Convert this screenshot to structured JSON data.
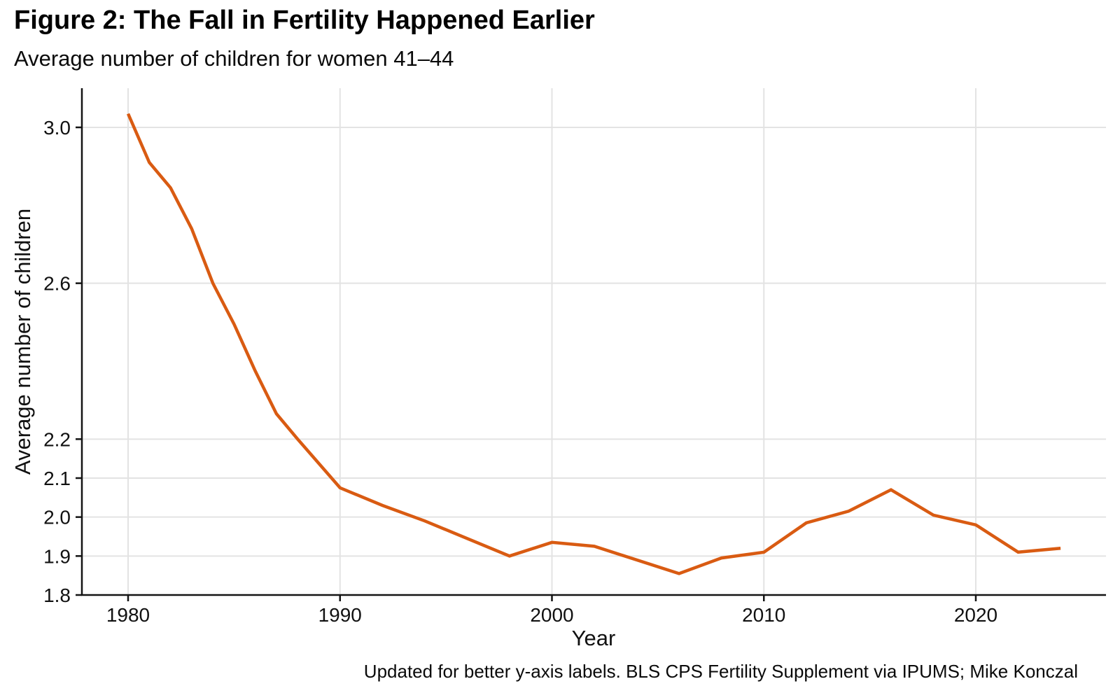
{
  "chart_data": {
    "type": "line",
    "title": "Figure 2: The Fall in Fertility Happened Earlier",
    "subtitle": "Average number of children for women 41–44",
    "xlabel": "Year",
    "ylabel": "Average number of children",
    "caption": "Updated for better y-axis labels. BLS CPS Fertility Supplement via IPUMS; Mike Konczal",
    "series": [
      {
        "name": "Average number of children, women 41–44",
        "x": [
          1980,
          1981,
          1982,
          1983,
          1984,
          1985,
          1986,
          1987,
          1988,
          1990,
          1992,
          1994,
          1998,
          2000,
          2002,
          2006,
          2008,
          2010,
          2012,
          2014,
          2016,
          2018,
          2020,
          2022,
          2024
        ],
        "y": [
          3.035,
          2.91,
          2.845,
          2.74,
          2.6,
          2.495,
          2.375,
          2.265,
          2.2,
          2.075,
          2.03,
          1.99,
          1.9,
          1.935,
          1.925,
          1.855,
          1.895,
          1.91,
          1.985,
          2.015,
          2.07,
          2.005,
          1.98,
          1.91,
          1.92
        ]
      }
    ],
    "x_ticks": [
      {
        "value": 1980,
        "label": "1980"
      },
      {
        "value": 1990,
        "label": "1990"
      },
      {
        "value": 2000,
        "label": "2000"
      },
      {
        "value": 2010,
        "label": "2010"
      },
      {
        "value": 2020,
        "label": "2020"
      }
    ],
    "y_ticks": [
      {
        "value": 1.8,
        "label": "1.8"
      },
      {
        "value": 1.9,
        "label": "1.9"
      },
      {
        "value": 2.0,
        "label": "2.0"
      },
      {
        "value": 2.1,
        "label": "2.1"
      },
      {
        "value": 2.2,
        "label": "2.2"
      },
      {
        "value": 2.6,
        "label": "2.6"
      },
      {
        "value": 3.0,
        "label": "3.0"
      }
    ],
    "xlim": [
      1977.8,
      2026.3
    ],
    "ylim": [
      1.8,
      3.1
    ],
    "grid": true,
    "legend": "none",
    "colors": {
      "line": "#D95B12",
      "grid": "#E3E3E3",
      "axis": "#141414",
      "tick_text": "#111111"
    }
  }
}
